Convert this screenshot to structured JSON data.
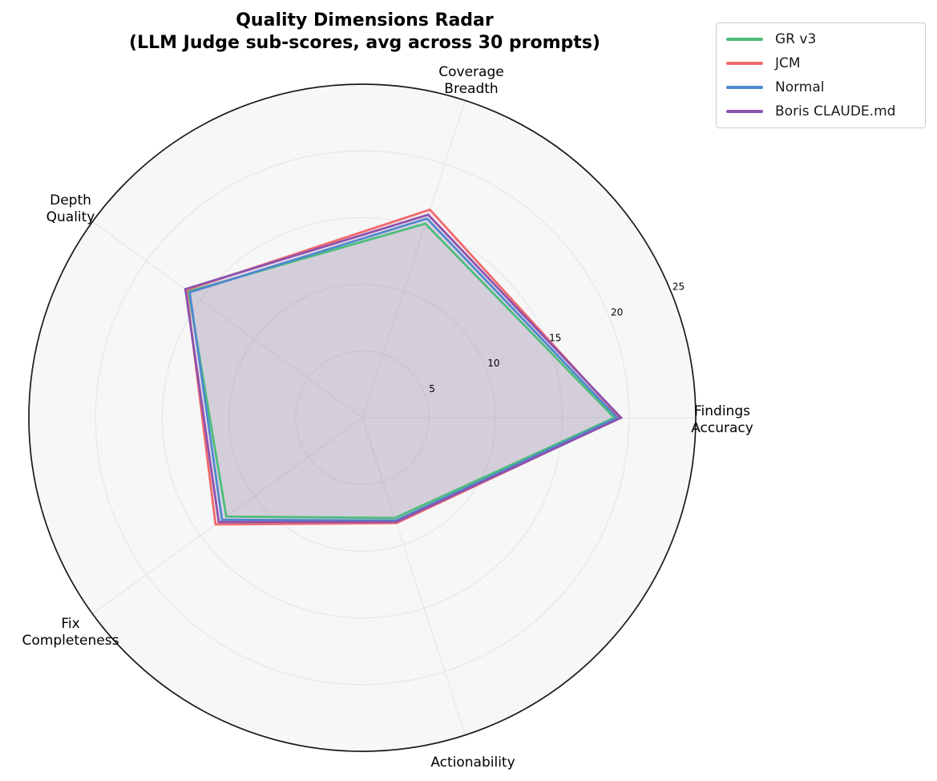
{
  "title": {
    "line1": "Quality Dimensions Radar",
    "line2": "(LLM Judge sub-scores, avg across 30 prompts)"
  },
  "chart_data": {
    "type": "radar",
    "title": "Quality Dimensions Radar (LLM Judge sub-scores, avg across 30 prompts)",
    "categories": [
      "Findings Accuracy",
      "Coverage Breadth",
      "Depth Quality",
      "Fix Completeness",
      "Actionability"
    ],
    "category_label_lines": [
      [
        "Findings",
        "Accuracy"
      ],
      [
        "Coverage",
        "Breadth"
      ],
      [
        "Depth",
        "Quality"
      ],
      [
        "Fix",
        "Completeness"
      ],
      [
        "Actionability"
      ]
    ],
    "series": [
      {
        "name": "GR v3",
        "color": "#4dbd7c",
        "values": [
          18.9,
          15.3,
          16.1,
          12.6,
          7.9
        ]
      },
      {
        "name": "JCM",
        "color": "#f2696c",
        "values": [
          19.3,
          16.4,
          16.3,
          13.6,
          8.3
        ]
      },
      {
        "name": "Normal",
        "color": "#4f88ce",
        "values": [
          19.1,
          15.7,
          16.0,
          13.0,
          8.1
        ]
      },
      {
        "name": "Boris CLAUDE.md",
        "color": "#8b53ae",
        "values": [
          19.4,
          16.0,
          16.4,
          13.3,
          8.2
        ]
      }
    ],
    "radial_ticks": [
      5,
      10,
      15,
      20,
      25
    ],
    "rlim": [
      0,
      25
    ],
    "start_angle_deg": 0,
    "direction": "counterclockwise",
    "rlabel_angle_deg": 22.5,
    "grid": true,
    "legend_position": "upper right"
  },
  "colors": {
    "outer_ring": "#1a1a1a",
    "axes_background": "#f7f7f8",
    "gridline": "#e7e7ec",
    "tick_label": "#000000",
    "axis_label": "#000000"
  }
}
